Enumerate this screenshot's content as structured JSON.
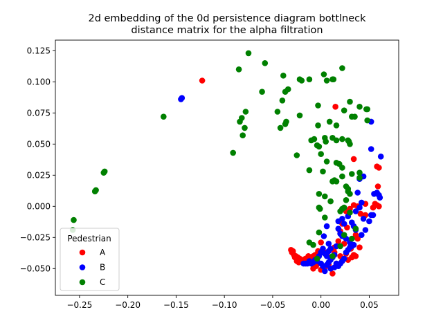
{
  "chart_data": {
    "type": "scatter",
    "title": "2d embedding of the 0d persistence diagram bottlneck\ndistance matrix for the alpha filtration",
    "xlabel": "",
    "ylabel": "",
    "xlim": [
      -0.275,
      0.0805
    ],
    "ylim": [
      -0.0715,
      0.1335
    ],
    "xticks": [
      -0.25,
      -0.2,
      -0.15,
      -0.1,
      -0.05,
      0.0,
      0.05
    ],
    "xtick_labels": [
      "−0.25",
      "−0.20",
      "−0.15",
      "−0.10",
      "−0.05",
      "0.00",
      "0.05"
    ],
    "yticks": [
      -0.05,
      -0.025,
      0.0,
      0.025,
      0.05,
      0.075,
      0.1,
      0.125
    ],
    "ytick_labels": [
      "−0.050",
      "−0.025",
      "0.000",
      "0.025",
      "0.050",
      "0.075",
      "0.100",
      "0.125"
    ],
    "grid": false,
    "legend": {
      "title": "Pedestrian",
      "placement": "lower left"
    },
    "series": [
      {
        "name": "A",
        "color": "#ff0000",
        "points": [
          [
            -0.123,
            0.101
          ],
          [
            0.015,
            0.08
          ],
          [
            0.034,
            0.038
          ],
          [
            0.058,
            0.032
          ],
          [
            0.06,
            0.031
          ],
          [
            0.059,
            0.016
          ],
          [
            0.056,
            0.002
          ],
          [
            0.058,
            0.001
          ],
          [
            0.06,
            0.0
          ],
          [
            0.054,
            -0.001
          ],
          [
            0.046,
            0.002
          ],
          [
            0.038,
            0.0
          ],
          [
            0.034,
            0.001
          ],
          [
            0.03,
            -0.002
          ],
          [
            0.026,
            -0.004
          ],
          [
            0.041,
            -0.006
          ],
          [
            0.046,
            -0.007
          ],
          [
            0.022,
            -0.014
          ],
          [
            0.027,
            -0.017
          ],
          [
            0.02,
            -0.02
          ],
          [
            0.036,
            -0.023
          ],
          [
            0.038,
            -0.026
          ],
          [
            0.018,
            -0.028
          ],
          [
            0.024,
            -0.03
          ],
          [
            0.014,
            -0.033
          ],
          [
            0.031,
            -0.034
          ],
          [
            0.04,
            -0.033
          ],
          [
            0.034,
            -0.039
          ],
          [
            0.026,
            -0.038
          ],
          [
            0.02,
            -0.04
          ],
          [
            0.01,
            -0.041
          ],
          [
            0.004,
            -0.037
          ],
          [
            0.0,
            -0.029
          ],
          [
            -0.003,
            -0.036
          ],
          [
            -0.006,
            -0.039
          ],
          [
            -0.008,
            -0.04
          ],
          [
            -0.011,
            -0.041
          ],
          [
            -0.014,
            -0.044
          ],
          [
            -0.017,
            -0.044
          ],
          [
            -0.02,
            -0.043
          ],
          [
            -0.022,
            -0.042
          ],
          [
            -0.024,
            -0.041
          ],
          [
            -0.026,
            -0.04
          ],
          [
            -0.028,
            -0.039
          ],
          [
            -0.03,
            -0.037
          ],
          [
            -0.031,
            -0.035
          ],
          [
            -0.029,
            -0.036
          ],
          [
            -0.027,
            -0.041
          ],
          [
            -0.025,
            -0.044
          ],
          [
            -0.023,
            -0.045
          ],
          [
            -0.02,
            -0.044
          ],
          [
            -0.016,
            -0.042
          ],
          [
            -0.013,
            -0.04
          ],
          [
            -0.01,
            -0.042
          ],
          [
            -0.007,
            -0.045
          ],
          [
            -0.005,
            -0.048
          ],
          [
            -0.008,
            -0.05
          ],
          [
            0.0,
            -0.051
          ],
          [
            0.004,
            -0.049
          ],
          [
            0.008,
            -0.047
          ],
          [
            0.012,
            -0.054
          ],
          [
            0.016,
            -0.046
          ],
          [
            0.022,
            -0.044
          ],
          [
            0.028,
            -0.043
          ],
          [
            0.032,
            -0.041
          ],
          [
            0.036,
            -0.04
          ],
          [
            0.006,
            -0.039
          ],
          [
            0.014,
            -0.037
          ]
        ]
      },
      {
        "name": "B",
        "color": "#0000ff",
        "points": [
          [
            -0.145,
            0.086
          ],
          [
            -0.144,
            0.087
          ],
          [
            0.052,
            0.068
          ],
          [
            0.052,
            0.046
          ],
          [
            0.062,
            0.04
          ],
          [
            0.044,
            0.024
          ],
          [
            0.04,
            0.022
          ],
          [
            0.038,
            0.011
          ],
          [
            0.058,
            0.011
          ],
          [
            0.06,
            0.009
          ],
          [
            0.061,
            0.007
          ],
          [
            0.055,
            0.01
          ],
          [
            0.042,
            0.003
          ],
          [
            0.04,
            -0.001
          ],
          [
            0.036,
            -0.004
          ],
          [
            0.052,
            -0.007
          ],
          [
            0.054,
            -0.007
          ],
          [
            0.044,
            -0.01
          ],
          [
            0.05,
            -0.012
          ],
          [
            0.028,
            -0.008
          ],
          [
            0.022,
            -0.01
          ],
          [
            0.018,
            -0.012
          ],
          [
            0.024,
            -0.014
          ],
          [
            0.032,
            -0.013
          ],
          [
            0.034,
            -0.016
          ],
          [
            0.036,
            -0.019
          ],
          [
            0.042,
            -0.023
          ],
          [
            0.046,
            -0.019
          ],
          [
            0.006,
            -0.016
          ],
          [
            0.018,
            -0.018
          ],
          [
            0.02,
            -0.022
          ],
          [
            0.022,
            -0.024
          ],
          [
            0.026,
            -0.026
          ],
          [
            0.03,
            -0.029
          ],
          [
            0.034,
            -0.031
          ],
          [
            0.016,
            -0.032
          ],
          [
            0.01,
            -0.034
          ],
          [
            0.003,
            -0.024
          ],
          [
            0.008,
            -0.03
          ],
          [
            0.002,
            -0.034
          ],
          [
            0.0,
            -0.037
          ],
          [
            -0.002,
            -0.04
          ],
          [
            -0.004,
            -0.042
          ],
          [
            -0.006,
            -0.043
          ],
          [
            -0.008,
            -0.045
          ],
          [
            -0.01,
            -0.046
          ],
          [
            -0.012,
            -0.044
          ],
          [
            -0.016,
            -0.046
          ],
          [
            -0.018,
            -0.046
          ],
          [
            -0.014,
            -0.046
          ],
          [
            -0.004,
            -0.044
          ],
          [
            0.0,
            -0.046
          ],
          [
            0.002,
            -0.048
          ],
          [
            0.004,
            -0.052
          ],
          [
            0.006,
            -0.047
          ],
          [
            0.008,
            -0.045
          ],
          [
            0.01,
            -0.043
          ],
          [
            0.012,
            -0.041
          ],
          [
            0.014,
            -0.039
          ],
          [
            0.016,
            -0.046
          ],
          [
            0.018,
            -0.048
          ],
          [
            0.02,
            -0.046
          ],
          [
            0.022,
            -0.044
          ],
          [
            0.024,
            -0.042
          ],
          [
            0.026,
            -0.037
          ],
          [
            0.028,
            -0.035
          ],
          [
            0.03,
            -0.033
          ],
          [
            0.032,
            -0.032
          ],
          [
            0.006,
            -0.04
          ],
          [
            0.004,
            -0.038
          ],
          [
            0.008,
            -0.036
          ],
          [
            0.01,
            -0.05
          ],
          [
            0.014,
            -0.049
          ]
        ]
      },
      {
        "name": "C",
        "color": "#008000",
        "points": [
          [
            -0.075,
            0.123
          ],
          [
            -0.058,
            0.115
          ],
          [
            -0.085,
            0.11
          ],
          [
            0.022,
            0.111
          ],
          [
            0.003,
            0.106
          ],
          [
            -0.039,
            0.105
          ],
          [
            -0.022,
            0.102
          ],
          [
            -0.012,
            0.102
          ],
          [
            -0.02,
            0.101
          ],
          [
            0.006,
            0.101
          ],
          [
            0.012,
            0.102
          ],
          [
            0.013,
            0.102
          ],
          [
            -0.061,
            0.092
          ],
          [
            -0.037,
            0.092
          ],
          [
            -0.034,
            0.094
          ],
          [
            -0.04,
            0.085
          ],
          [
            0.03,
            0.084
          ],
          [
            0.04,
            0.08
          ],
          [
            0.047,
            0.078
          ],
          [
            0.048,
            0.078
          ],
          [
            -0.003,
            0.081
          ],
          [
            0.024,
            0.077
          ],
          [
            -0.078,
            0.076
          ],
          [
            -0.082,
            0.071
          ],
          [
            -0.084,
            0.068
          ],
          [
            -0.079,
            0.063
          ],
          [
            -0.045,
            0.076
          ],
          [
            -0.036,
            0.068
          ],
          [
            -0.037,
            0.066
          ],
          [
            -0.042,
            0.063
          ],
          [
            -0.022,
            0.073
          ],
          [
            0.009,
            0.068
          ],
          [
            0.032,
            0.072
          ],
          [
            0.035,
            0.072
          ],
          [
            0.048,
            0.069
          ],
          [
            -0.163,
            0.072
          ],
          [
            -0.081,
            0.057
          ],
          [
            -0.003,
            0.065
          ],
          [
            0.016,
            0.065
          ],
          [
            -0.01,
            0.053
          ],
          [
            -0.007,
            0.054
          ],
          [
            0.004,
            0.055
          ],
          [
            0.005,
            0.052
          ],
          [
            0.012,
            0.055
          ],
          [
            0.016,
            0.053
          ],
          [
            0.022,
            0.054
          ],
          [
            0.028,
            0.053
          ],
          [
            0.03,
            0.05
          ],
          [
            0.029,
            0.052
          ],
          [
            -0.004,
            0.049
          ],
          [
            -0.002,
            0.048
          ],
          [
            0.0,
            0.042
          ],
          [
            -0.025,
            0.041
          ],
          [
            -0.091,
            0.043
          ],
          [
            0.006,
            0.036
          ],
          [
            0.016,
            0.035
          ],
          [
            0.019,
            0.034
          ],
          [
            0.022,
            0.031
          ],
          [
            0.032,
            0.026
          ],
          [
            0.04,
            0.027
          ],
          [
            0.04,
            0.023
          ],
          [
            -0.012,
            0.029
          ],
          [
            0.002,
            0.028
          ],
          [
            0.022,
            0.024
          ],
          [
            0.012,
            0.02
          ],
          [
            0.016,
            0.02
          ],
          [
            0.014,
            0.021
          ],
          [
            0.026,
            0.016
          ],
          [
            0.028,
            0.014
          ],
          [
            0.028,
            0.012
          ],
          [
            0.03,
            0.01
          ],
          [
            0.026,
            0.005
          ],
          [
            -0.002,
            0.01
          ],
          [
            0.004,
            0.008
          ],
          [
            0.01,
            0.004
          ],
          [
            -0.224,
            0.028
          ],
          [
            -0.225,
            0.027
          ],
          [
            -0.233,
            0.013
          ],
          [
            -0.234,
            0.012
          ],
          [
            -0.256,
            -0.011
          ],
          [
            -0.257,
            -0.019
          ],
          [
            -0.002,
            -0.001
          ],
          [
            -0.001,
            -0.002
          ],
          [
            0.024,
            -0.001
          ],
          [
            0.022,
            -0.002
          ],
          [
            0.02,
            -0.004
          ],
          [
            0.004,
            -0.009
          ],
          [
            0.03,
            -0.005
          ],
          [
            -0.002,
            -0.021
          ],
          [
            0.036,
            -0.018
          ],
          [
            0.032,
            -0.026
          ],
          [
            -0.008,
            -0.031
          ],
          [
            -0.012,
            -0.029
          ],
          [
            0.024,
            -0.023
          ],
          [
            0.02,
            -0.032
          ],
          [
            -0.004,
            -0.042
          ],
          [
            0.012,
            -0.04
          ]
        ]
      }
    ]
  }
}
